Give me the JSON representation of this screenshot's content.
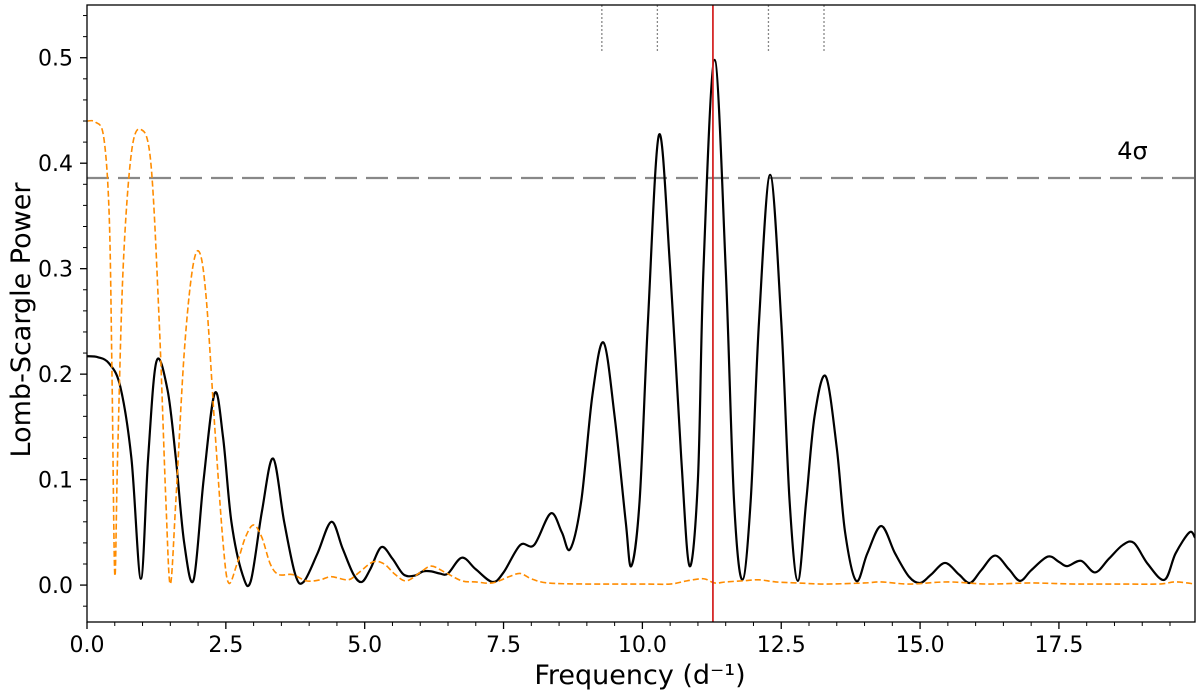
{
  "chart_data": {
    "type": "line",
    "xlabel": "Frequency (d⁻¹)",
    "ylabel": "Lomb-Scargle Power",
    "xlim": [
      0,
      19.95
    ],
    "ylim": [
      -0.035,
      0.55
    ],
    "xticks": [
      0.0,
      2.5,
      5.0,
      7.5,
      10.0,
      12.5,
      15.0,
      17.5
    ],
    "xtick_labels": [
      "0.0",
      "2.5",
      "5.0",
      "7.5",
      "10.0",
      "12.5",
      "15.0",
      "17.5"
    ],
    "yticks": [
      0.0,
      0.1,
      0.2,
      0.3,
      0.4,
      0.5
    ],
    "ytick_labels": [
      "0.0",
      "0.1",
      "0.2",
      "0.3",
      "0.4",
      "0.5"
    ],
    "grid": false,
    "legend": "none",
    "series": [
      {
        "style": "solid",
        "color": "#000000",
        "points": [
          [
            0.0,
            0.217
          ],
          [
            0.2,
            0.216
          ],
          [
            0.4,
            0.21
          ],
          [
            0.6,
            0.188
          ],
          [
            0.8,
            0.12
          ],
          [
            0.97,
            0.006
          ],
          [
            1.1,
            0.12
          ],
          [
            1.25,
            0.212
          ],
          [
            1.45,
            0.185
          ],
          [
            1.6,
            0.12
          ],
          [
            1.75,
            0.04
          ],
          [
            1.92,
            0.005
          ],
          [
            2.1,
            0.1
          ],
          [
            2.3,
            0.182
          ],
          [
            2.45,
            0.14
          ],
          [
            2.6,
            0.06
          ],
          [
            2.8,
            0.01
          ],
          [
            2.95,
            0.004
          ],
          [
            3.15,
            0.07
          ],
          [
            3.35,
            0.12
          ],
          [
            3.55,
            0.06
          ],
          [
            3.75,
            0.01
          ],
          [
            3.9,
            0.003
          ],
          [
            4.15,
            0.03
          ],
          [
            4.4,
            0.06
          ],
          [
            4.6,
            0.035
          ],
          [
            4.8,
            0.01
          ],
          [
            4.95,
            0.003
          ],
          [
            5.1,
            0.015
          ],
          [
            5.3,
            0.036
          ],
          [
            5.5,
            0.025
          ],
          [
            5.7,
            0.01
          ],
          [
            5.9,
            0.009
          ],
          [
            6.05,
            0.013
          ],
          [
            6.2,
            0.013
          ],
          [
            6.35,
            0.011
          ],
          [
            6.5,
            0.011
          ],
          [
            6.75,
            0.026
          ],
          [
            7.0,
            0.015
          ],
          [
            7.3,
            0.003
          ],
          [
            7.5,
            0.012
          ],
          [
            7.8,
            0.038
          ],
          [
            8.05,
            0.038
          ],
          [
            8.35,
            0.068
          ],
          [
            8.55,
            0.05
          ],
          [
            8.7,
            0.034
          ],
          [
            8.9,
            0.08
          ],
          [
            9.1,
            0.18
          ],
          [
            9.3,
            0.23
          ],
          [
            9.5,
            0.16
          ],
          [
            9.7,
            0.06
          ],
          [
            9.8,
            0.018
          ],
          [
            9.95,
            0.08
          ],
          [
            10.1,
            0.25
          ],
          [
            10.3,
            0.427
          ],
          [
            10.5,
            0.3
          ],
          [
            10.7,
            0.12
          ],
          [
            10.85,
            0.018
          ],
          [
            11.0,
            0.1
          ],
          [
            11.1,
            0.3
          ],
          [
            11.3,
            0.498
          ],
          [
            11.5,
            0.3
          ],
          [
            11.65,
            0.08
          ],
          [
            11.8,
            0.005
          ],
          [
            11.95,
            0.08
          ],
          [
            12.1,
            0.25
          ],
          [
            12.3,
            0.389
          ],
          [
            12.5,
            0.25
          ],
          [
            12.65,
            0.08
          ],
          [
            12.8,
            0.004
          ],
          [
            12.95,
            0.08
          ],
          [
            13.1,
            0.16
          ],
          [
            13.3,
            0.198
          ],
          [
            13.5,
            0.13
          ],
          [
            13.65,
            0.05
          ],
          [
            13.85,
            0.004
          ],
          [
            14.05,
            0.03
          ],
          [
            14.3,
            0.056
          ],
          [
            14.55,
            0.03
          ],
          [
            14.8,
            0.008
          ],
          [
            15.0,
            0.002
          ],
          [
            15.2,
            0.01
          ],
          [
            15.45,
            0.021
          ],
          [
            15.7,
            0.01
          ],
          [
            15.9,
            0.002
          ],
          [
            16.1,
            0.014
          ],
          [
            16.35,
            0.028
          ],
          [
            16.6,
            0.015
          ],
          [
            16.8,
            0.004
          ],
          [
            17.0,
            0.014
          ],
          [
            17.3,
            0.027
          ],
          [
            17.5,
            0.022
          ],
          [
            17.65,
            0.018
          ],
          [
            17.9,
            0.023
          ],
          [
            18.15,
            0.012
          ],
          [
            18.4,
            0.025
          ],
          [
            18.65,
            0.038
          ],
          [
            18.85,
            0.04
          ],
          [
            19.1,
            0.02
          ],
          [
            19.4,
            0.005
          ],
          [
            19.6,
            0.03
          ],
          [
            19.85,
            0.05
          ],
          [
            19.95,
            0.045
          ]
        ]
      },
      {
        "style": "dashed",
        "color": "#ff8c00",
        "points": [
          [
            0.0,
            0.44
          ],
          [
            0.15,
            0.439
          ],
          [
            0.3,
            0.425
          ],
          [
            0.4,
            0.35
          ],
          [
            0.45,
            0.2
          ],
          [
            0.5,
            0.01
          ],
          [
            0.55,
            0.12
          ],
          [
            0.65,
            0.3
          ],
          [
            0.8,
            0.41
          ],
          [
            0.97,
            0.432
          ],
          [
            1.15,
            0.4
          ],
          [
            1.3,
            0.25
          ],
          [
            1.42,
            0.08
          ],
          [
            1.5,
            0.001
          ],
          [
            1.6,
            0.08
          ],
          [
            1.75,
            0.22
          ],
          [
            1.9,
            0.3
          ],
          [
            2.03,
            0.315
          ],
          [
            2.15,
            0.27
          ],
          [
            2.3,
            0.15
          ],
          [
            2.45,
            0.04
          ],
          [
            2.55,
            0.002
          ],
          [
            2.7,
            0.02
          ],
          [
            2.85,
            0.045
          ],
          [
            3.0,
            0.057
          ],
          [
            3.15,
            0.045
          ],
          [
            3.3,
            0.02
          ],
          [
            3.45,
            0.01
          ],
          [
            3.7,
            0.01
          ],
          [
            3.95,
            0.004
          ],
          [
            4.2,
            0.005
          ],
          [
            4.4,
            0.008
          ],
          [
            4.7,
            0.005
          ],
          [
            4.9,
            0.012
          ],
          [
            5.15,
            0.022
          ],
          [
            5.35,
            0.02
          ],
          [
            5.55,
            0.01
          ],
          [
            5.75,
            0.004
          ],
          [
            6.0,
            0.012
          ],
          [
            6.2,
            0.018
          ],
          [
            6.45,
            0.012
          ],
          [
            6.75,
            0.004
          ],
          [
            7.0,
            0.003
          ],
          [
            7.3,
            0.002
          ],
          [
            7.6,
            0.008
          ],
          [
            7.8,
            0.011
          ],
          [
            8.0,
            0.006
          ],
          [
            8.3,
            0.002
          ],
          [
            9.0,
            0.001
          ],
          [
            10.0,
            0.001
          ],
          [
            10.5,
            0.001
          ],
          [
            10.8,
            0.004
          ],
          [
            11.1,
            0.006
          ],
          [
            11.3,
            0.002
          ],
          [
            11.5,
            0.003
          ],
          [
            11.8,
            0.004
          ],
          [
            12.1,
            0.005
          ],
          [
            12.4,
            0.003
          ],
          [
            12.8,
            0.002
          ],
          [
            13.3,
            0.001
          ],
          [
            14.0,
            0.002
          ],
          [
            14.3,
            0.003
          ],
          [
            14.8,
            0.001
          ],
          [
            15.5,
            0.003
          ],
          [
            16.2,
            0.001
          ],
          [
            17.0,
            0.002
          ],
          [
            17.8,
            0.001
          ],
          [
            18.6,
            0.001
          ],
          [
            19.3,
            0.001
          ],
          [
            19.6,
            0.003
          ],
          [
            19.95,
            0.001
          ]
        ]
      }
    ],
    "threshold": {
      "y": 0.386,
      "style": "long-dashed",
      "color": "#888888",
      "label": "4σ",
      "label_x": 18.55,
      "label_y": 0.404
    },
    "vertical_line": {
      "x": 11.27,
      "color": "#d62728"
    },
    "marker_lines": {
      "x": [
        9.27,
        10.27,
        12.27,
        13.27
      ],
      "y_from": 0.506,
      "y_to": 0.55,
      "style": "dotted",
      "color": "#888888"
    }
  }
}
